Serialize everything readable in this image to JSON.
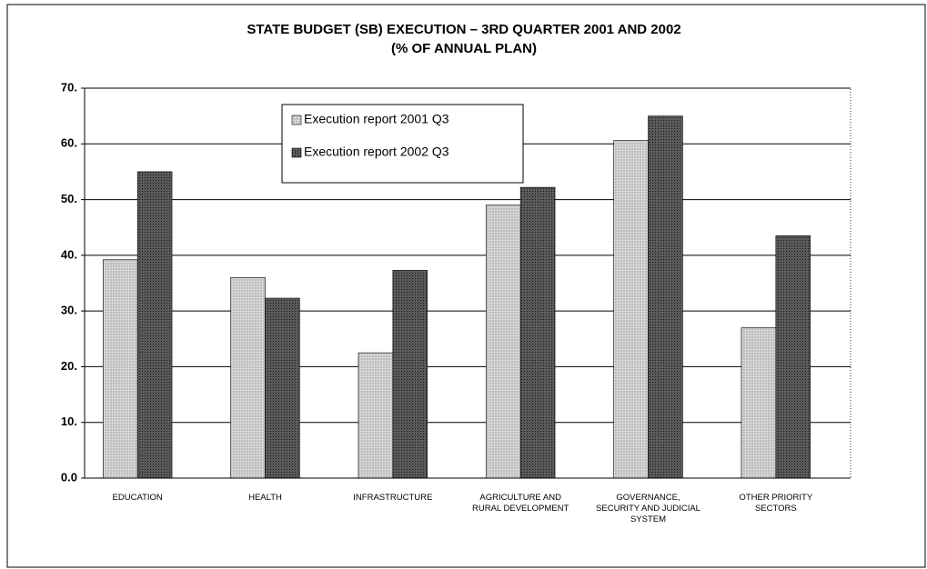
{
  "chart_data": {
    "type": "bar",
    "title": "STATE BUDGET (SB) EXECUTION – 3RD QUARTER 2001  AND 2002",
    "subtitle": "(% OF ANNUAL PLAN)",
    "categories": [
      "EDUCATION",
      "HEALTH",
      "INFRASTRUCTURE",
      "AGRICULTURE AND RURAL DEVELOPMENT",
      "GOVERNANCE, SECURITY AND JUDICIAL SYSTEM",
      "OTHER PRIORITY SECTORS"
    ],
    "series": [
      {
        "name": "Execution report 2001 Q3",
        "color": "#c4c4c4",
        "values": [
          39.2,
          36,
          22.5,
          49,
          60.6,
          27
        ]
      },
      {
        "name": "Execution report 2002 Q3",
        "color": "#5a5a5a",
        "values": [
          55,
          32.3,
          37.3,
          52.2,
          65,
          43.5
        ]
      }
    ],
    "ylim": [
      0,
      70
    ],
    "yticks": [
      {
        "value": 0,
        "label": "0.0"
      },
      {
        "value": 10,
        "label": "10."
      },
      {
        "value": 20,
        "label": "20."
      },
      {
        "value": 30,
        "label": "30."
      },
      {
        "value": 40,
        "label": "40."
      },
      {
        "value": 50,
        "label": "50."
      },
      {
        "value": 60,
        "label": "60."
      },
      {
        "value": 70,
        "label": "70."
      }
    ],
    "grid": true
  }
}
